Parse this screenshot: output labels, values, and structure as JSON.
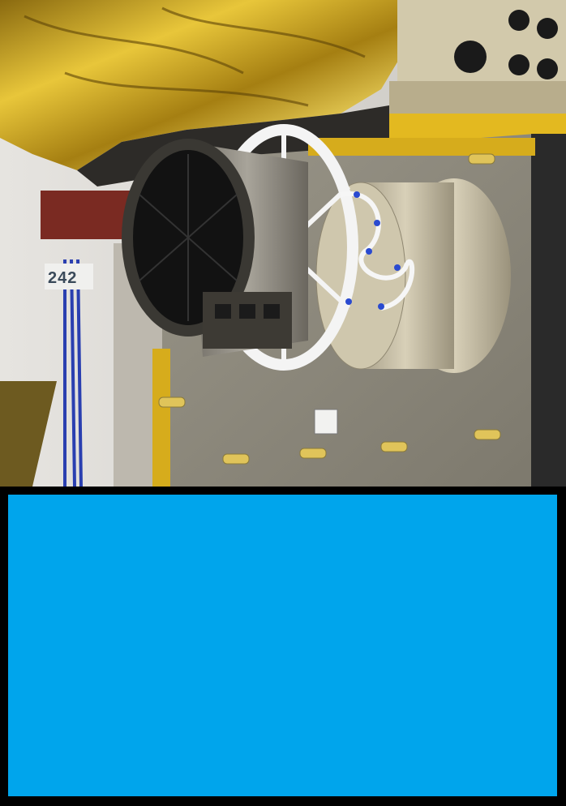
{
  "photo": {
    "subject": "photograph",
    "visible_text": {
      "equipment_label": "242"
    }
  },
  "panel": {
    "color": "#00a5ec"
  },
  "colors": {
    "background": "#000000",
    "blanket_gold": "#c9a21a",
    "plate_gray": "#8f8b7e",
    "cylinder": "#c9c1a8"
  }
}
